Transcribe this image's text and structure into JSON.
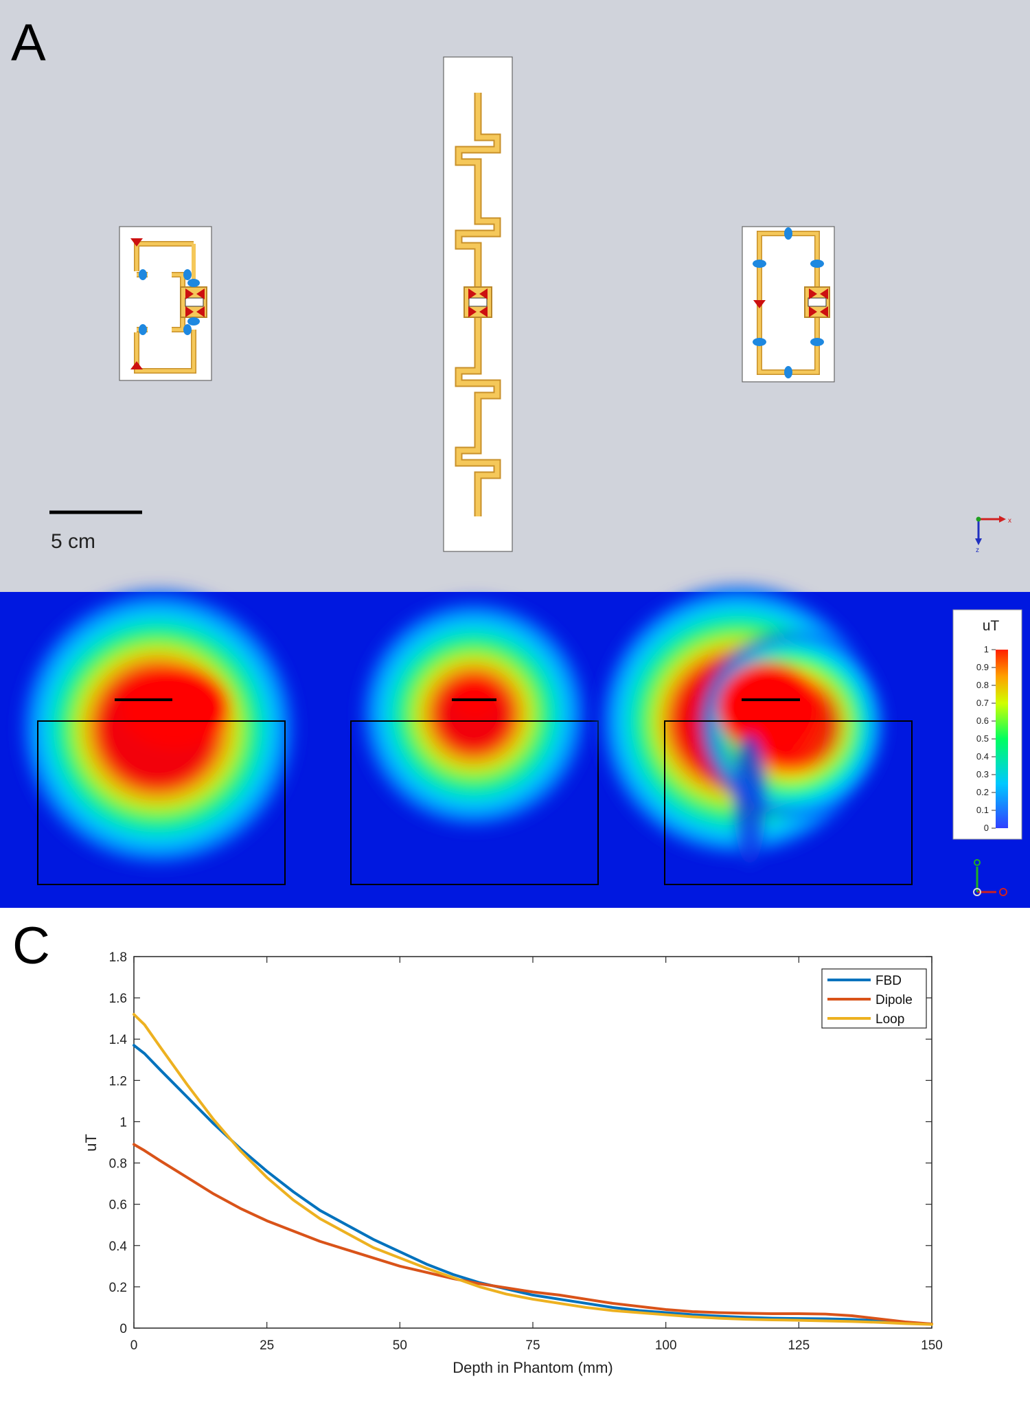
{
  "panel_a": {
    "letter": "A",
    "scale_bar_label": "5 cm",
    "axis_x_label": "x",
    "axis_z_label": "z"
  },
  "panel_b": {
    "colorbar_unit": "uT",
    "colorbar_ticks": [
      "1",
      "0.9",
      "0.8",
      "0.7",
      "0.6",
      "0.5",
      "0.4",
      "0.3",
      "0.2",
      "0.1",
      "0"
    ]
  },
  "chart_data": {
    "type": "line",
    "panel_letter": "C",
    "xlabel": "Depth in Phantom (mm)",
    "ylabel": "uT",
    "xlim": [
      0,
      150
    ],
    "ylim": [
      0,
      1.8
    ],
    "xticks": [
      0,
      25,
      50,
      75,
      100,
      125,
      150
    ],
    "yticks": [
      0,
      0.2,
      0.4,
      0.6,
      0.8,
      1,
      1.2,
      1.4,
      1.6,
      1.8
    ],
    "grid": false,
    "legend_position": "top-right",
    "x": [
      0,
      2,
      5,
      10,
      15,
      20,
      25,
      30,
      35,
      40,
      45,
      50,
      55,
      60,
      65,
      70,
      75,
      80,
      85,
      90,
      95,
      100,
      105,
      110,
      115,
      120,
      125,
      130,
      135,
      140,
      145,
      150
    ],
    "series": [
      {
        "name": "FBD",
        "color": "#0072BD",
        "values": [
          1.37,
          1.33,
          1.25,
          1.12,
          0.99,
          0.87,
          0.76,
          0.66,
          0.57,
          0.5,
          0.43,
          0.37,
          0.31,
          0.26,
          0.22,
          0.19,
          0.16,
          0.14,
          0.12,
          0.1,
          0.085,
          0.075,
          0.065,
          0.058,
          0.052,
          0.048,
          0.046,
          0.045,
          0.042,
          0.035,
          0.025,
          0.02
        ]
      },
      {
        "name": "Dipole",
        "color": "#D95319",
        "values": [
          0.89,
          0.86,
          0.81,
          0.73,
          0.65,
          0.58,
          0.52,
          0.47,
          0.42,
          0.38,
          0.34,
          0.3,
          0.27,
          0.24,
          0.215,
          0.195,
          0.175,
          0.16,
          0.14,
          0.12,
          0.105,
          0.09,
          0.08,
          0.075,
          0.072,
          0.07,
          0.07,
          0.068,
          0.06,
          0.045,
          0.03,
          0.02
        ]
      },
      {
        "name": "Loop",
        "color": "#EDB120",
        "values": [
          1.52,
          1.47,
          1.36,
          1.18,
          1.01,
          0.86,
          0.73,
          0.62,
          0.53,
          0.46,
          0.39,
          0.34,
          0.29,
          0.245,
          0.2,
          0.165,
          0.14,
          0.12,
          0.1,
          0.085,
          0.075,
          0.065,
          0.055,
          0.048,
          0.043,
          0.04,
          0.038,
          0.035,
          0.032,
          0.028,
          0.022,
          0.018
        ]
      }
    ]
  }
}
